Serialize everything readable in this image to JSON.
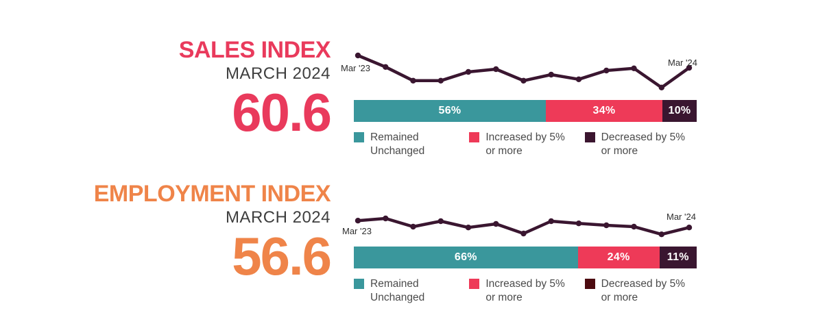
{
  "colors": {
    "teal": "#3A979C",
    "pink": "#EE3A58",
    "dark_purple": "#3A1630",
    "line": "#3A1630",
    "sales_accent": "#E93A5C",
    "employment_accent": "#EF8449",
    "subtitle_gray": "#3E3E3E",
    "legend_text_gray": "#4A4A4A"
  },
  "sections": [
    {
      "id": "sales",
      "title": "SALES INDEX",
      "subtitle": "MARCH 2024",
      "value": "60.6",
      "spark_start_label": "Mar '23",
      "spark_end_label": "Mar '24",
      "legend": [
        {
          "label": "Remained Unchanged",
          "color": "#3A979C"
        },
        {
          "label": "Increased by 5% or more",
          "color": "#EE3A58"
        },
        {
          "label": "Decreased by 5% or more",
          "color": "#3B152F"
        }
      ]
    },
    {
      "id": "employment",
      "title": "EMPLOYMENT INDEX",
      "subtitle": "MARCH 2024",
      "value": "56.6",
      "spark_start_label": "Mar '23",
      "spark_end_label": "Mar '24",
      "legend": [
        {
          "label": "Remained Unchanged",
          "color": "#3A979C"
        },
        {
          "label": "Increased by 5% or more",
          "color": "#EE3A58"
        },
        {
          "label": "Decreased by 5% or more",
          "color": "#4C0B10"
        }
      ]
    }
  ],
  "chart_data": [
    {
      "type": "line",
      "title": "Sales Index monthly trend",
      "x": [
        "Mar '23",
        "Apr '23",
        "May '23",
        "Jun '23",
        "Jul '23",
        "Aug '23",
        "Sep '23",
        "Oct '23",
        "Nov '23",
        "Dec '23",
        "Jan '24",
        "Feb '24",
        "Mar '24"
      ],
      "values": [
        65.1,
        60.9,
        55.9,
        55.9,
        59.1,
        60.1,
        55.9,
        58.1,
        56.4,
        59.6,
        60.4,
        53.4,
        60.6
      ],
      "visible_x_labels": [
        "Mar '23",
        "Mar '24"
      ],
      "line_color": "#3A1630",
      "markers": true,
      "axes_shown": false
    },
    {
      "type": "bar",
      "stacked": true,
      "title": "Sales Index response distribution",
      "categories": [
        "Remained Unchanged",
        "Increased by 5% or more",
        "Decreased by 5% or more"
      ],
      "values": [
        56,
        34,
        10
      ],
      "labels": [
        "56%",
        "34%",
        "10%"
      ],
      "colors": [
        "#3A979C",
        "#EE3A58",
        "#3A1630"
      ]
    },
    {
      "type": "line",
      "title": "Employment Index monthly trend",
      "x": [
        "Mar '23",
        "Apr '23",
        "May '23",
        "Jun '23",
        "Jul '23",
        "Aug '23",
        "Sep '23",
        "Oct '23",
        "Nov '23",
        "Dec '23",
        "Jan '24",
        "Feb '24",
        "Mar '24"
      ],
      "values": [
        59.1,
        59.9,
        56.9,
        58.9,
        56.6,
        57.9,
        54.4,
        58.9,
        58.1,
        57.4,
        56.9,
        54.1,
        56.6
      ],
      "visible_x_labels": [
        "Mar '23",
        "Mar '24"
      ],
      "line_color": "#3A1630",
      "markers": true,
      "axes_shown": false
    },
    {
      "type": "bar",
      "stacked": true,
      "title": "Employment Index response distribution",
      "categories": [
        "Remained Unchanged",
        "Increased by 5% or more",
        "Decreased by 5% or more"
      ],
      "values": [
        66,
        24,
        11
      ],
      "labels": [
        "66%",
        "24%",
        "11%"
      ],
      "colors": [
        "#3A979C",
        "#EE3A58",
        "#3A1630"
      ]
    }
  ]
}
